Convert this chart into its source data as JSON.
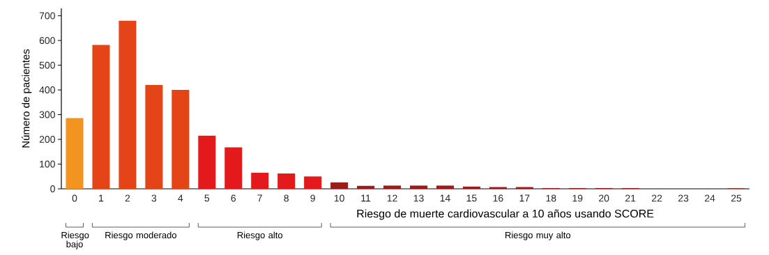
{
  "chart_data": {
    "type": "bar",
    "xlabel": "Riesgo de muerte cardiovascular a 10 años usando SCORE",
    "ylabel": "Número de pacientes",
    "categories": [
      "0",
      "1",
      "2",
      "3",
      "4",
      "5",
      "6",
      "7",
      "8",
      "9",
      "10",
      "11",
      "12",
      "13",
      "14",
      "15",
      "16",
      "17",
      "18",
      "19",
      "20",
      "21",
      "22",
      "23",
      "24",
      "25"
    ],
    "values": [
      286,
      582,
      680,
      420,
      400,
      215,
      168,
      65,
      62,
      50,
      26,
      12,
      13,
      13,
      13,
      9,
      7,
      7,
      3,
      3,
      3,
      3,
      0,
      0,
      0,
      2
    ],
    "colors": [
      "#f39420",
      "#e54416",
      "#e54416",
      "#e54416",
      "#e54416",
      "#e3191b",
      "#e3191b",
      "#e3191b",
      "#e3191b",
      "#e3191b",
      "#9b1a1a",
      "#9b1a1a",
      "#9b1a1a",
      "#9b1a1a",
      "#9b1a1a",
      "#9b1a1a",
      "#9b1a1a",
      "#9b1a1a",
      "#9b1a1a",
      "#9b1a1a",
      "#9b1a1a",
      "#9b1a1a",
      "#9b1a1a",
      "#9b1a1a",
      "#9b1a1a",
      "#9b1a1a"
    ],
    "ylim": [
      0,
      730
    ],
    "yticks": [
      0,
      100,
      200,
      300,
      400,
      500,
      600,
      700
    ],
    "grid": false,
    "annotations": [
      "Riesgo bajo",
      "Riesgo moderado",
      "Riesgo alto",
      "Riesgo muy alto"
    ]
  }
}
